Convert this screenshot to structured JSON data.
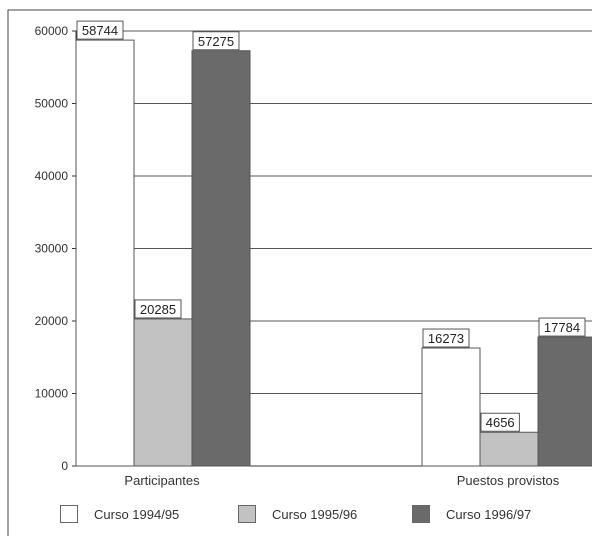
{
  "chart_data": {
    "type": "bar",
    "categories": [
      "Participantes",
      "Puestos provistos"
    ],
    "series": [
      {
        "name": "Curso 1994/95",
        "values": [
          58744,
          16273
        ],
        "color": "#ffffff"
      },
      {
        "name": "Curso 1995/96",
        "values": [
          20285,
          4656
        ],
        "color": "#c2c2c2"
      },
      {
        "name": "Curso 1996/97",
        "values": [
          57275,
          17784
        ],
        "color": "#6a6a6a"
      }
    ],
    "yticks": [
      0,
      10000,
      20000,
      30000,
      40000,
      50000,
      60000
    ],
    "ylim": [
      0,
      60000
    ],
    "grid": true,
    "legend_position": "bottom",
    "data_labels": [
      "58744",
      "20285",
      "57275",
      "16273",
      "4656",
      "17784"
    ]
  }
}
